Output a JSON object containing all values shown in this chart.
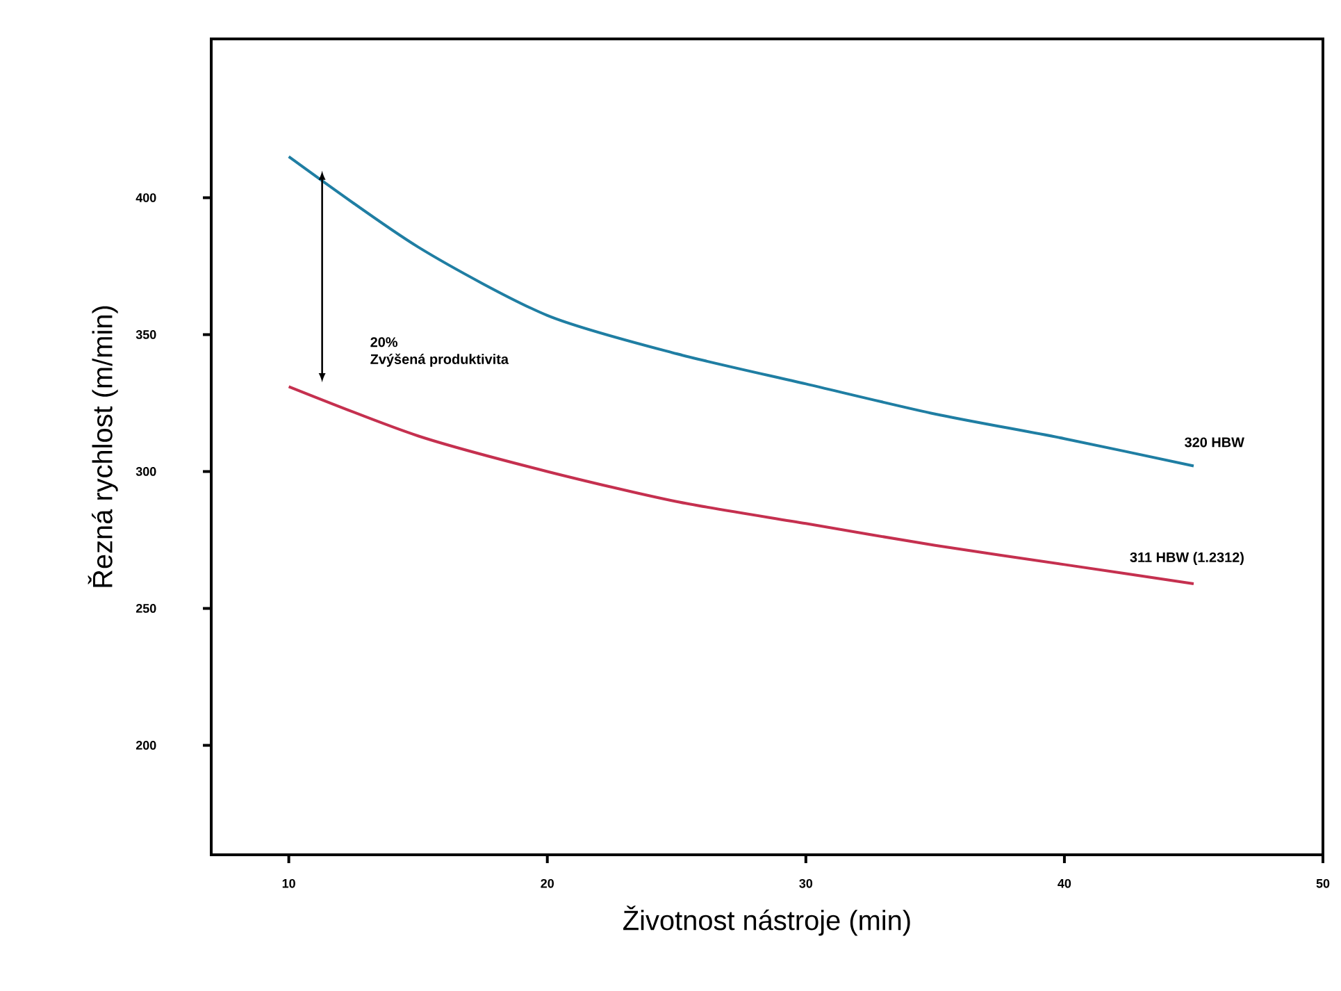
{
  "chart_data": {
    "type": "line",
    "xlabel": "Životnost nástroje (min)",
    "ylabel": "Řezná rychlost (m/min)",
    "xlim": [
      7,
      50
    ],
    "ylim": [
      160,
      458
    ],
    "xticks": [
      10,
      20,
      30,
      40,
      50
    ],
    "yticks": [
      200,
      250,
      300,
      350,
      400
    ],
    "x": [
      10,
      15,
      20,
      25,
      30,
      35,
      40,
      45
    ],
    "series": [
      {
        "name": "320 HBW",
        "color": "#1f7ea3",
        "values": [
          415,
          382,
          357,
          343,
          332,
          321,
          312,
          302
        ]
      },
      {
        "name": "311 HBW (1.2312)",
        "color": "#c5304f",
        "values": [
          331,
          313,
          300,
          289,
          281,
          273,
          266,
          259
        ]
      }
    ],
    "annotations": [
      "20%",
      "Zvýšená produktivita"
    ]
  }
}
